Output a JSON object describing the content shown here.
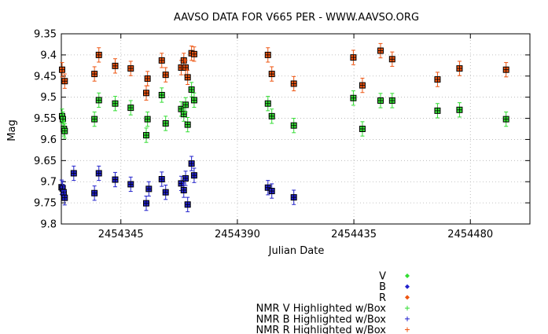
{
  "chart_data": {
    "type": "scatter",
    "title": "AAVSO DATA FOR V665 PER - WWW.AAVSO.ORG",
    "xlabel": "Julian Date",
    "ylabel": "Mag",
    "xlim": [
      2454322,
      2454503
    ],
    "ylim": [
      9.8,
      9.35
    ],
    "y_inverted": true,
    "grid": true,
    "legend_position": "below-right",
    "x_ticks": [
      {
        "value": 2454345,
        "label": "2454345"
      },
      {
        "value": 2454390,
        "label": "2454390"
      },
      {
        "value": 2454435,
        "label": "2454435"
      },
      {
        "value": 2454480,
        "label": "2454480"
      }
    ],
    "y_ticks": [
      {
        "value": 9.35,
        "label": "9.35"
      },
      {
        "value": 9.4,
        "label": "9.4"
      },
      {
        "value": 9.45,
        "label": "9.45"
      },
      {
        "value": 9.5,
        "label": "9.5"
      },
      {
        "value": 9.55,
        "label": "9.55"
      },
      {
        "value": 9.6,
        "label": "9.6"
      },
      {
        "value": 9.65,
        "label": "9.65"
      },
      {
        "value": 9.7,
        "label": "9.7"
      },
      {
        "value": 9.75,
        "label": "9.75"
      },
      {
        "value": 9.8,
        "label": "9.8"
      }
    ],
    "legend": [
      {
        "label": "V",
        "color": "#33dd33",
        "marker": "diamond"
      },
      {
        "label": "B",
        "color": "#2222cc",
        "marker": "diamond"
      },
      {
        "label": "R",
        "color": "#ee5511",
        "marker": "diamond"
      },
      {
        "label": "NMR V Highlighted w/Box",
        "color": "#33dd33",
        "marker": "plus"
      },
      {
        "label": "NMR B Highlighted w/Box",
        "color": "#2222cc",
        "marker": "plus"
      },
      {
        "label": "NMR R Highlighted w/Box",
        "color": "#ee5511",
        "marker": "plus"
      }
    ],
    "error_bar": 0.017,
    "series": [
      {
        "name": "V",
        "color": "#33dd33",
        "points": [
          [
            2454322.3,
            9.545
          ],
          [
            2454322.6,
            9.552
          ],
          [
            2454323.0,
            9.575
          ],
          [
            2454323.3,
            9.58
          ],
          [
            2454334.8,
            9.552
          ],
          [
            2454336.5,
            9.507
          ],
          [
            2454342.8,
            9.515
          ],
          [
            2454348.8,
            9.525
          ],
          [
            2454354.8,
            9.59
          ],
          [
            2454355.3,
            9.552
          ],
          [
            2454360.8,
            9.495
          ],
          [
            2454362.3,
            9.562
          ],
          [
            2454368.3,
            9.528
          ],
          [
            2454369.3,
            9.54
          ],
          [
            2454370.0,
            9.518
          ],
          [
            2454370.8,
            9.565
          ],
          [
            2454372.3,
            9.482
          ],
          [
            2454373.3,
            9.507
          ],
          [
            2454401.8,
            9.515
          ],
          [
            2454403.3,
            9.545
          ],
          [
            2454411.8,
            9.567
          ],
          [
            2454434.8,
            9.502
          ],
          [
            2454438.3,
            9.575
          ],
          [
            2454445.3,
            9.508
          ],
          [
            2454449.8,
            9.508
          ],
          [
            2454467.3,
            9.532
          ],
          [
            2454475.8,
            9.53
          ],
          [
            2454493.8,
            9.552
          ]
        ]
      },
      {
        "name": "B",
        "color": "#2222cc",
        "points": [
          [
            2454322.1,
            9.713
          ],
          [
            2454322.5,
            9.716
          ],
          [
            2454322.9,
            9.725
          ],
          [
            2454323.3,
            9.738
          ],
          [
            2454326.8,
            9.68
          ],
          [
            2454334.8,
            9.727
          ],
          [
            2454336.5,
            9.68
          ],
          [
            2454342.8,
            9.695
          ],
          [
            2454348.8,
            9.706
          ],
          [
            2454354.8,
            9.751
          ],
          [
            2454355.8,
            9.717
          ],
          [
            2454360.8,
            9.694
          ],
          [
            2454362.3,
            9.725
          ],
          [
            2454368.3,
            9.704
          ],
          [
            2454369.3,
            9.72
          ],
          [
            2454370.0,
            9.692
          ],
          [
            2454370.8,
            9.754
          ],
          [
            2454372.3,
            9.657
          ],
          [
            2454373.3,
            9.685
          ],
          [
            2454401.8,
            9.714
          ],
          [
            2454403.3,
            9.722
          ],
          [
            2454411.8,
            9.737
          ]
        ]
      },
      {
        "name": "R",
        "color": "#ee5511",
        "points": [
          [
            2454322.3,
            9.435
          ],
          [
            2454323.3,
            9.462
          ],
          [
            2454334.8,
            9.445
          ],
          [
            2454336.5,
            9.4
          ],
          [
            2454342.8,
            9.426
          ],
          [
            2454348.8,
            9.432
          ],
          [
            2454354.8,
            9.49
          ],
          [
            2454355.3,
            9.456
          ],
          [
            2454360.8,
            9.413
          ],
          [
            2454362.3,
            9.447
          ],
          [
            2454368.3,
            9.43
          ],
          [
            2454369.3,
            9.413
          ],
          [
            2454370.0,
            9.43
          ],
          [
            2454370.8,
            9.453
          ],
          [
            2454372.3,
            9.396
          ],
          [
            2454373.3,
            9.398
          ],
          [
            2454401.8,
            9.4
          ],
          [
            2454403.3,
            9.445
          ],
          [
            2454411.8,
            9.468
          ],
          [
            2454434.8,
            9.406
          ],
          [
            2454438.3,
            9.472
          ],
          [
            2454445.3,
            9.39
          ],
          [
            2454449.8,
            9.41
          ],
          [
            2454467.3,
            9.458
          ],
          [
            2454475.8,
            9.432
          ],
          [
            2454493.8,
            9.435
          ]
        ]
      }
    ]
  }
}
